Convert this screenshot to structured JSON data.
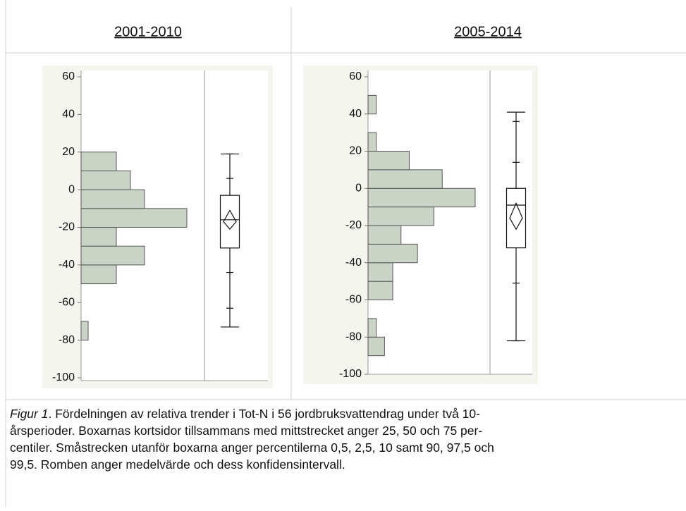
{
  "headers": [
    "2001-2010",
    "2005-2014"
  ],
  "chart_data": [
    {
      "type": "histogram",
      "color": "#c9d4c6",
      "bins": [
        -80,
        -70,
        -60,
        -50,
        -40,
        -30,
        -20,
        -10,
        0,
        10,
        20
      ],
      "values": [
        1,
        0,
        0,
        5,
        9,
        5,
        15,
        9,
        7,
        5
      ],
      "xlim": [
        0,
        17.5
      ],
      "ylim": [
        -100,
        60
      ],
      "yticks": [
        -100,
        -80,
        -60,
        -40,
        -20,
        0,
        20,
        40,
        60
      ],
      "box": {
        "whisker_low": -73,
        "p2_5": -63,
        "p10": -44,
        "q1": -31,
        "median": -16,
        "q3": -3,
        "p90": 6,
        "p97_5": 19,
        "whisker_high": 19,
        "mean": -17,
        "mean_ci": [
          -21,
          -11
        ]
      }
    },
    {
      "type": "histogram",
      "color": "#c9d4c6",
      "bins": [
        -90,
        -80,
        -70,
        -60,
        -50,
        -40,
        -30,
        -20,
        -10,
        0,
        10,
        20,
        30,
        40,
        50
      ],
      "values": [
        2,
        1,
        0,
        3,
        3,
        6,
        4,
        8,
        13,
        9,
        5,
        1,
        0,
        1
      ],
      "xlim": [
        0,
        14.8
      ],
      "ylim": [
        -100,
        60
      ],
      "yticks": [
        -100,
        -80,
        -60,
        -40,
        -20,
        0,
        20,
        40,
        60
      ],
      "box": {
        "whisker_low": -82,
        "p2_5": -82,
        "p10": -51,
        "q1": -32,
        "median": -9,
        "q3": 0,
        "p90": 14,
        "p97_5": 36,
        "whisker_high": 41,
        "mean": -16,
        "mean_ci": [
          -22,
          -8
        ]
      }
    }
  ],
  "caption": {
    "label": "Figur 1",
    "lines": [
      ". Fördelningen av relativa trender i Tot-N i 56 jordbruksvattendrag under två 10-",
      "årsperioder. Boxarnas kortsidor tillsammans med mittstrecket anger 25, 50 och 75 per-",
      "centiler. Småstrecken utanför boxarna anger percentilerna 0,5, 2,5, 10 samt 90, 97,5 och",
      "99,5. Romben anger medelvärde och dess konfidensintervall."
    ]
  }
}
